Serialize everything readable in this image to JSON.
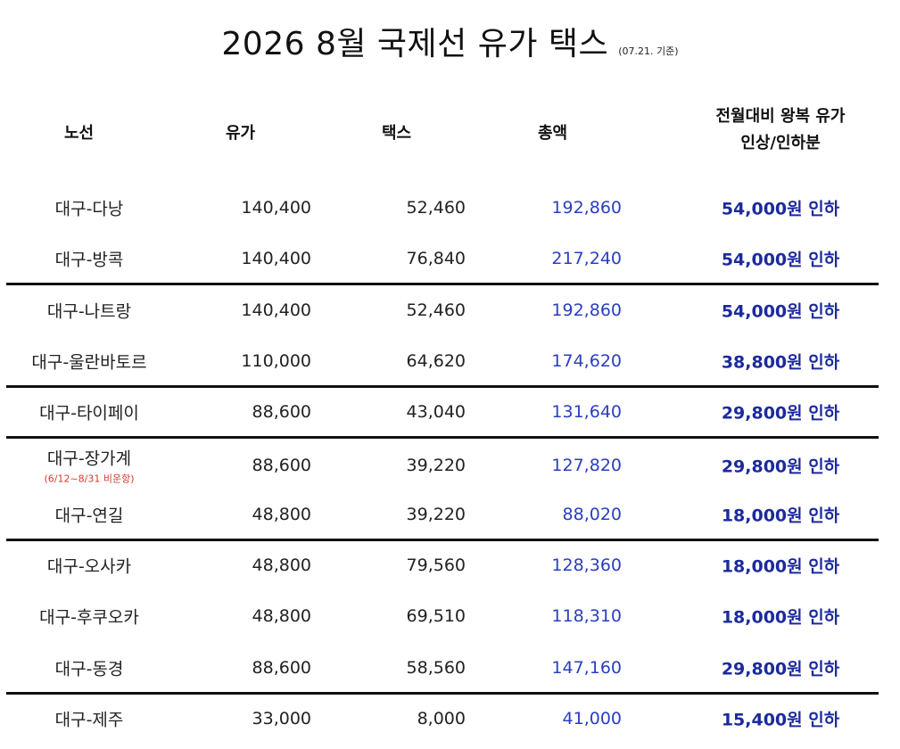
{
  "title": {
    "main": "2026 8월 국제선 유가 택스",
    "sub": "(07.21. 기준)"
  },
  "headers": {
    "route": "노선",
    "fuel": "유가",
    "tax": "택스",
    "total": "총액",
    "change_line1": "전월대비 왕복 유가",
    "change_line2": "인상/인하분"
  },
  "rows": [
    {
      "route": "대구-다낭",
      "fuel": "140,400",
      "tax": "52,460",
      "total": "192,860",
      "change": "54,000원 인하"
    },
    {
      "route": "대구-방콕",
      "fuel": "140,400",
      "tax": "76,840",
      "total": "217,240",
      "change": "54,000원 인하"
    },
    {
      "route": "대구-나트랑",
      "fuel": "140,400",
      "tax": "52,460",
      "total": "192,860",
      "change": "54,000원 인하"
    },
    {
      "route": "대구-울란바토르",
      "fuel": "110,000",
      "tax": "64,620",
      "total": "174,620",
      "change": "38,800원 인하"
    },
    {
      "route": "대구-타이페이",
      "fuel": "88,600",
      "tax": "43,040",
      "total": "131,640",
      "change": "29,800원 인하"
    },
    {
      "route": "대구-장가계",
      "note": "(6/12~8/31 비운항)",
      "fuel": "88,600",
      "tax": "39,220",
      "total": "127,820",
      "change": "29,800원 인하"
    },
    {
      "route": "대구-연길",
      "fuel": "48,800",
      "tax": "39,220",
      "total": "88,020",
      "change": "18,000원 인하"
    },
    {
      "route": "대구-오사카",
      "fuel": "48,800",
      "tax": "79,560",
      "total": "128,360",
      "change": "18,000원 인하"
    },
    {
      "route": "대구-후쿠오카",
      "fuel": "48,800",
      "tax": "69,510",
      "total": "118,310",
      "change": "18,000원 인하"
    },
    {
      "route": "대구-동경",
      "fuel": "88,600",
      "tax": "58,560",
      "total": "147,160",
      "change": "29,800원 인하"
    },
    {
      "route": "대구-제주",
      "fuel": "33,000",
      "tax": "8,000",
      "total": "41,000",
      "change": "15,400원 인하"
    }
  ],
  "colors": {
    "total_text": "#2a3fbf",
    "change_text": "#1c2a9c",
    "note_text": "#d43a2a",
    "separator": "#111111"
  }
}
